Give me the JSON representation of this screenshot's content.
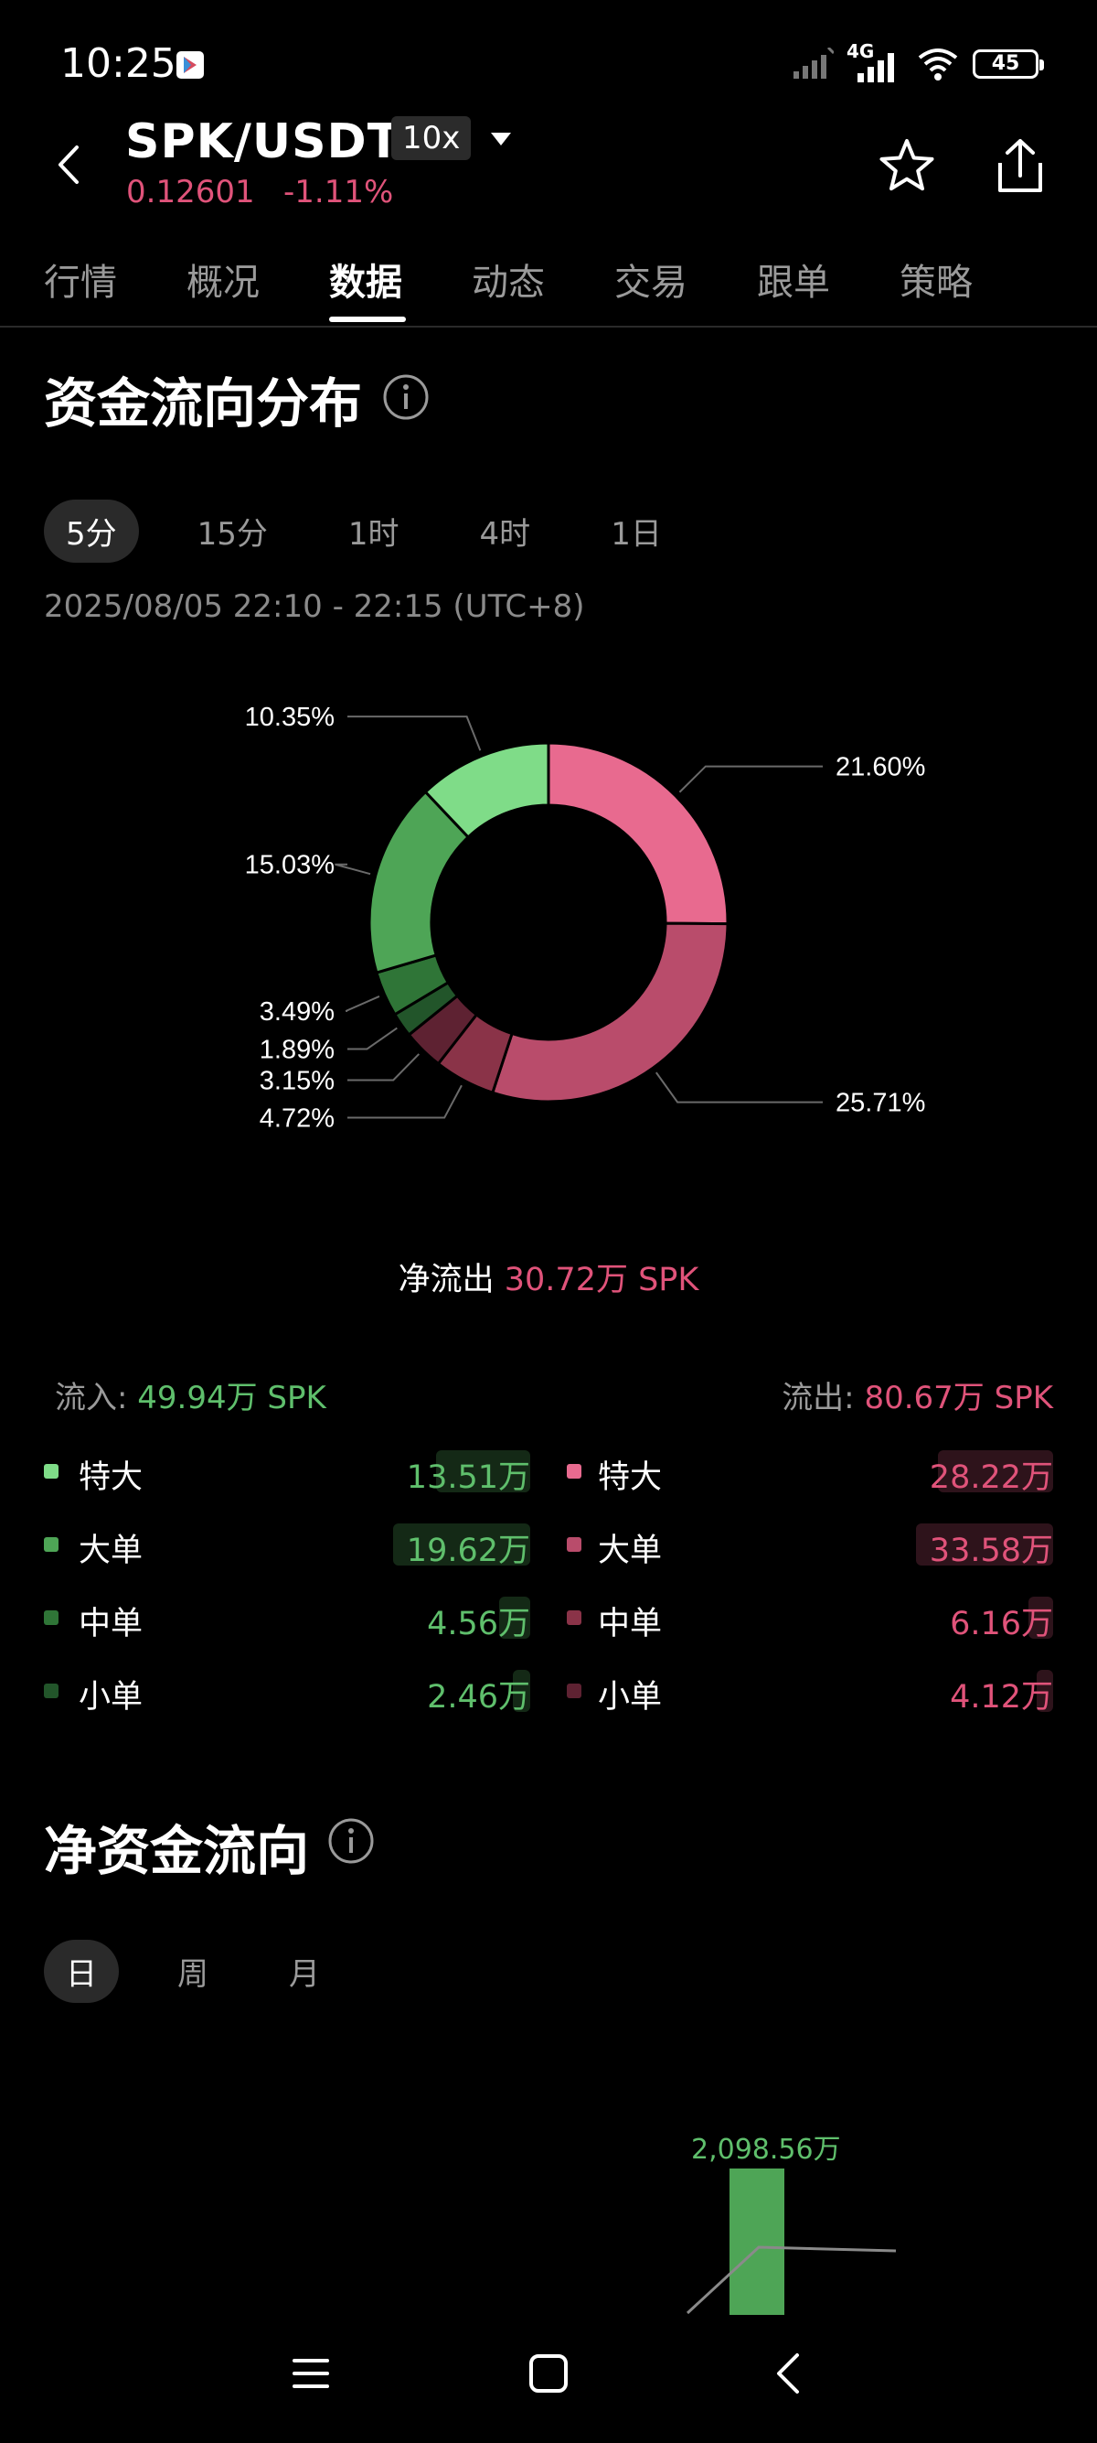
{
  "status_bar": {
    "time": "10:25",
    "network": "4G",
    "battery": "45"
  },
  "header": {
    "pair": "SPK/USDT",
    "leverage": "10x",
    "price": "0.12601",
    "change": "-1.11%"
  },
  "tabs": [
    "行情",
    "概况",
    "数据",
    "动态",
    "交易",
    "跟单",
    "策略"
  ],
  "active_tab": "数据",
  "fund_flow": {
    "title": "资金流向分布",
    "intervals": [
      "5分",
      "15分",
      "1时",
      "4时",
      "1日"
    ],
    "active_interval": "5分",
    "date_range": "2025/08/05 22:10 - 22:15 (UTC+8)",
    "donut": {
      "slices": [
        {
          "label": "21.60%",
          "value": 21.6,
          "color": "#e86a8f"
        },
        {
          "label": "25.71%",
          "value": 25.71,
          "color": "#b94c6b"
        },
        {
          "label": "4.72%",
          "value": 4.72,
          "color": "#8a3348"
        },
        {
          "label": "3.15%",
          "value": 3.15,
          "color": "#5e2232"
        },
        {
          "label": "1.89%",
          "value": 1.89,
          "color": "#22552a"
        },
        {
          "label": "3.49%",
          "value": 3.49,
          "color": "#2f7537"
        },
        {
          "label": "15.03%",
          "value": 15.03,
          "color": "#4ea556"
        },
        {
          "label": "10.35%",
          "value": 10.35,
          "color": "#7fdc88"
        }
      ]
    },
    "net": {
      "label": "净流出",
      "value": "30.72万 SPK"
    },
    "inflow": {
      "label": "流入:",
      "value": "49.94万 SPK"
    },
    "outflow": {
      "label": "流出:",
      "value": "80.67万 SPK"
    },
    "inflow_rows": [
      {
        "name": "特大",
        "amount": "13.51万",
        "ratio": 0.69,
        "color": "#7fdc88"
      },
      {
        "name": "大单",
        "amount": "19.62万",
        "ratio": 1.0,
        "color": "#4ea556"
      },
      {
        "name": "中单",
        "amount": "4.56万",
        "ratio": 0.23,
        "color": "#2f7537"
      },
      {
        "name": "小单",
        "amount": "2.46万",
        "ratio": 0.13,
        "color": "#22552a"
      }
    ],
    "outflow_rows": [
      {
        "name": "特大",
        "amount": "28.22万",
        "ratio": 0.84,
        "color": "#e86a8f"
      },
      {
        "name": "大单",
        "amount": "33.58万",
        "ratio": 1.0,
        "color": "#b94c6b"
      },
      {
        "name": "中单",
        "amount": "6.16万",
        "ratio": 0.18,
        "color": "#8a3348"
      },
      {
        "name": "小单",
        "amount": "4.12万",
        "ratio": 0.12,
        "color": "#5e2232"
      }
    ]
  },
  "net_flow": {
    "title": "净资金流向",
    "periods": [
      "日",
      "周",
      "月"
    ],
    "active_period": "日",
    "bar_value_label": "2,098.56万"
  }
}
